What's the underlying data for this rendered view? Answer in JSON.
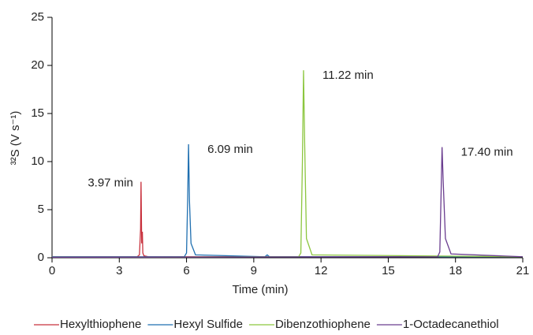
{
  "chart_data": {
    "type": "line",
    "ylabel": "³²S (V s⁻¹)",
    "xlabel": "Time (min)",
    "xlim": [
      0,
      21
    ],
    "xticks": [
      0,
      3,
      6,
      9,
      12,
      15,
      18,
      21
    ],
    "ylim": [
      0,
      25
    ],
    "yticks": [
      0,
      5,
      10,
      15,
      20,
      25
    ],
    "legend": "bottom",
    "series": [
      {
        "name": "Hexylthiophene",
        "color": "#c8303c",
        "annotation": "3.97 min",
        "x": [
          0,
          3.8,
          3.9,
          3.95,
          3.97,
          4.0,
          4.03,
          4.05,
          4.1,
          4.3,
          21
        ],
        "values": [
          0.1,
          0.1,
          0.3,
          3,
          7.9,
          1.5,
          2.7,
          0.5,
          0.2,
          0.1,
          0.1
        ]
      },
      {
        "name": "Hexyl Sulfide",
        "color": "#1f6fb0",
        "annotation": "6.09 min",
        "x": [
          0,
          5.9,
          6.0,
          6.05,
          6.09,
          6.13,
          6.2,
          6.4,
          9.5,
          9.6,
          9.7,
          21
        ],
        "values": [
          0.1,
          0.1,
          0.5,
          6,
          11.8,
          6,
          1.5,
          0.3,
          0.1,
          0.3,
          0.1,
          0.1
        ]
      },
      {
        "name": "Dibenzothiophene",
        "color": "#8cc63f",
        "annotation": "11.22 min",
        "x": [
          0,
          11.0,
          11.1,
          11.17,
          11.22,
          11.27,
          11.35,
          11.6,
          21
        ],
        "values": [
          0.05,
          0.1,
          0.5,
          10,
          19.5,
          12,
          2,
          0.3,
          0.1
        ]
      },
      {
        "name": "1-Octadecanethiol",
        "color": "#6a3d8f",
        "annotation": "17.40 min",
        "x": [
          0,
          17.2,
          17.3,
          17.36,
          17.4,
          17.45,
          17.55,
          17.8,
          21
        ],
        "values": [
          0.05,
          0.1,
          0.6,
          7,
          11.5,
          8,
          2,
          0.4,
          0.1
        ]
      }
    ]
  }
}
